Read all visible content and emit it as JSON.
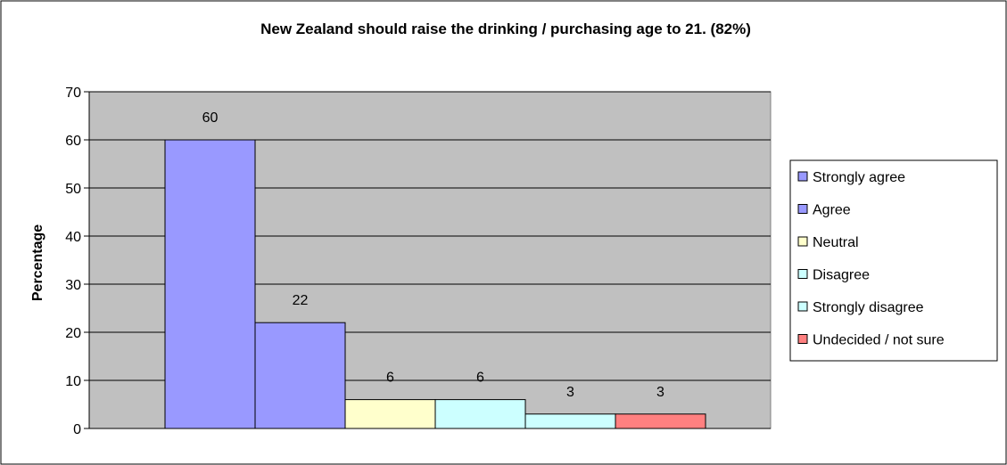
{
  "chart_data": {
    "type": "bar",
    "title": "New Zealand should raise the drinking / purchasing age to 21. (82%)",
    "xlabel": "",
    "ylabel": "Percentage",
    "ylim": [
      0,
      70
    ],
    "yticks": [
      0,
      10,
      20,
      30,
      40,
      50,
      60,
      70
    ],
    "grid": true,
    "legend_position": "right",
    "categories": [
      "Strongly agree",
      "Agree",
      "Neutral",
      "Disagree",
      "Strongly disagree",
      "Undecided / not sure"
    ],
    "values": [
      60,
      22,
      6,
      6,
      3,
      3
    ],
    "data_labels": [
      "60",
      "22",
      "6",
      "6",
      "3",
      "3"
    ],
    "colors": [
      "#9999ff",
      "#9999ff",
      "#ffffcc",
      "#ccffff",
      "#ccffff",
      "#ff8080"
    ],
    "plot_background": "#c0c0c0"
  }
}
